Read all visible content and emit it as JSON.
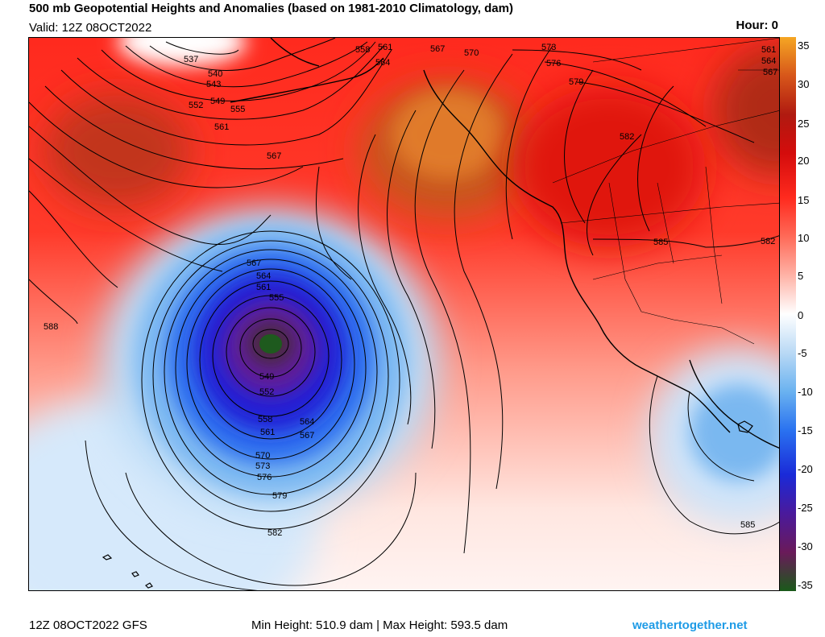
{
  "header": {
    "title": "500 mb Geopotential Heights and Anomalies (based on 1981-2010 Climatology, dam)",
    "valid": "Valid: 12Z 08OCT2022",
    "hour": "Hour: 0"
  },
  "colorbar": {
    "ticks": [
      "35",
      "30",
      "25",
      "20",
      "15",
      "10",
      "5",
      "0",
      "-5",
      "-10",
      "-15",
      "-20",
      "-25",
      "-30",
      "-35"
    ],
    "colors": [
      "#f5a623",
      "#d7561a",
      "#b01a10",
      "#e20a0a",
      "#ff3b2b",
      "#ff7f6f",
      "#ffc4ba",
      "#ffffff",
      "#b9d9f5",
      "#6ab2f0",
      "#2a72f0",
      "#1a2ad8",
      "#4a1a9c",
      "#6a1a5a",
      "#1a5a1a"
    ]
  },
  "map": {
    "contour_labels": [
      {
        "label": "537"
      },
      {
        "label": "540"
      },
      {
        "label": "543"
      },
      {
        "label": "549"
      },
      {
        "label": "552"
      },
      {
        "label": "555"
      },
      {
        "label": "561"
      },
      {
        "label": "567"
      },
      {
        "label": "558"
      },
      {
        "label": "561"
      },
      {
        "label": "564"
      },
      {
        "label": "567"
      },
      {
        "label": "570"
      },
      {
        "label": "573"
      },
      {
        "label": "576"
      },
      {
        "label": "579"
      },
      {
        "label": "582"
      },
      {
        "label": "585"
      },
      {
        "label": "582"
      },
      {
        "label": "588"
      },
      {
        "label": "567"
      },
      {
        "label": "564"
      },
      {
        "label": "561"
      },
      {
        "label": "555"
      },
      {
        "label": "549"
      },
      {
        "label": "552"
      },
      {
        "label": "558"
      },
      {
        "label": "561"
      },
      {
        "label": "564"
      },
      {
        "label": "567"
      },
      {
        "label": "570"
      },
      {
        "label": "573"
      },
      {
        "label": "576"
      },
      {
        "label": "579"
      },
      {
        "label": "582"
      },
      {
        "label": "585"
      },
      {
        "label": "561"
      },
      {
        "label": "564"
      },
      {
        "label": "567"
      }
    ]
  },
  "footer": {
    "run": "12Z 08OCT2022 GFS",
    "stats": "Min Height: 510.9 dam | Max Height: 593.5 dam",
    "site": "weathertogether.net"
  }
}
